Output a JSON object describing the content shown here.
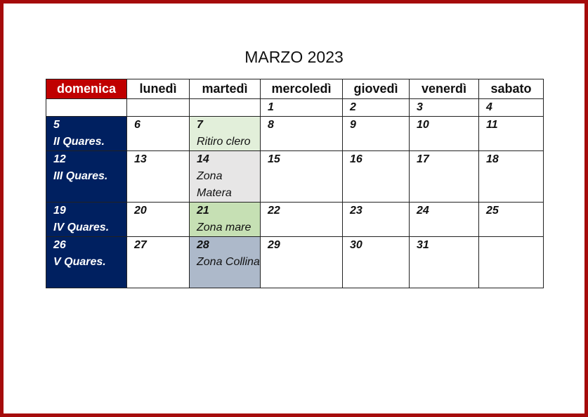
{
  "title": "MARZO 2023",
  "colors": {
    "frame": "#a50b0b",
    "sunday_header": "#c00000",
    "sunday": "#002060"
  },
  "weekdays": [
    "domenica",
    "lunedì",
    "martedì",
    "mercoledì",
    "giovedì",
    "venerdì",
    "sabato"
  ],
  "weeks": [
    [
      {
        "day": ""
      },
      {
        "day": ""
      },
      {
        "day": ""
      },
      {
        "day": "1"
      },
      {
        "day": "2"
      },
      {
        "day": "3"
      },
      {
        "day": "4"
      }
    ],
    [
      {
        "day": "5",
        "note": "II Quares."
      },
      {
        "day": "6"
      },
      {
        "day": "7",
        "note": "Ritiro clero",
        "bg": "#e2efda"
      },
      {
        "day": "8"
      },
      {
        "day": "9"
      },
      {
        "day": "10"
      },
      {
        "day": "11"
      }
    ],
    [
      {
        "day": "12",
        "note": "III Quares."
      },
      {
        "day": "13"
      },
      {
        "day": "14",
        "note": "Zona Matera",
        "bg": "#e7e6e6"
      },
      {
        "day": "15"
      },
      {
        "day": "16"
      },
      {
        "day": "17"
      },
      {
        "day": "18"
      }
    ],
    [
      {
        "day": "19",
        "note": "IV Quares."
      },
      {
        "day": "20"
      },
      {
        "day": "21",
        "note": "Zona mare",
        "bg": "#c6e0b4"
      },
      {
        "day": "22"
      },
      {
        "day": "23"
      },
      {
        "day": "24"
      },
      {
        "day": "25"
      }
    ],
    [
      {
        "day": "26",
        "note": "V Quares."
      },
      {
        "day": "27"
      },
      {
        "day": "28",
        "note": "Zona Collina",
        "bg": "#adb9ca"
      },
      {
        "day": "29"
      },
      {
        "day": "30"
      },
      {
        "day": "31"
      },
      {
        "day": ""
      }
    ]
  ]
}
